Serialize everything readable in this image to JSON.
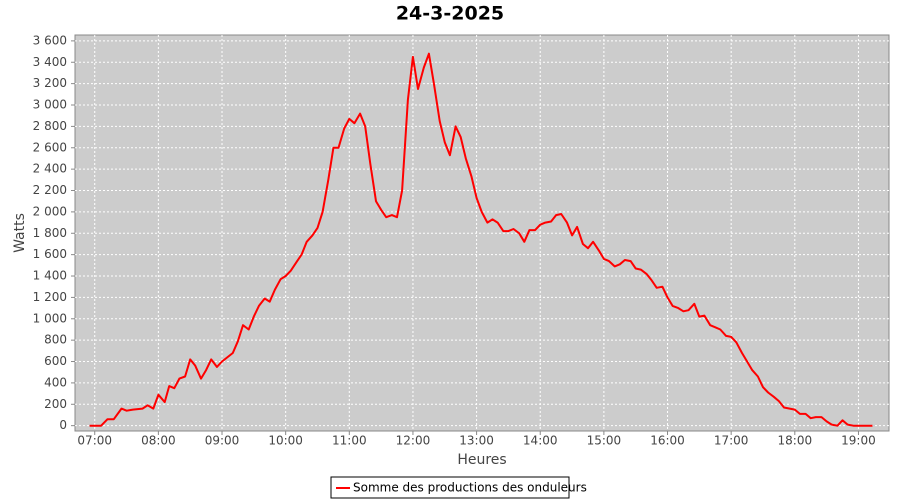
{
  "chart_data": {
    "type": "line",
    "title": "24-3-2025",
    "x_label": "Heures",
    "y_label": "Watts",
    "x": [
      6.92,
      7.0,
      7.1,
      7.2,
      7.3,
      7.42,
      7.5,
      7.6,
      7.75,
      7.83,
      7.92,
      8.0,
      8.1,
      8.17,
      8.25,
      8.33,
      8.42,
      8.5,
      8.58,
      8.67,
      8.75,
      8.83,
      8.92,
      9.0,
      9.17,
      9.25,
      9.33,
      9.42,
      9.5,
      9.58,
      9.67,
      9.75,
      9.83,
      9.92,
      10.0,
      10.08,
      10.17,
      10.25,
      10.33,
      10.42,
      10.5,
      10.58,
      10.67,
      10.75,
      10.83,
      10.92,
      11.0,
      11.08,
      11.17,
      11.25,
      11.33,
      11.42,
      11.5,
      11.58,
      11.67,
      11.75,
      11.83,
      11.92,
      12.0,
      12.08,
      12.17,
      12.25,
      12.33,
      12.42,
      12.5,
      12.58,
      12.67,
      12.75,
      12.83,
      12.92,
      13.0,
      13.08,
      13.17,
      13.25,
      13.33,
      13.42,
      13.5,
      13.58,
      13.67,
      13.75,
      13.83,
      13.92,
      14.0,
      14.08,
      14.17,
      14.25,
      14.33,
      14.42,
      14.5,
      14.58,
      14.67,
      14.75,
      14.83,
      14.92,
      15.0,
      15.08,
      15.17,
      15.25,
      15.33,
      15.42,
      15.5,
      15.58,
      15.67,
      15.75,
      15.83,
      15.92,
      16.0,
      16.08,
      16.17,
      16.25,
      16.33,
      16.42,
      16.5,
      16.58,
      16.67,
      16.75,
      16.83,
      16.92,
      17.0,
      17.08,
      17.17,
      17.25,
      17.33,
      17.42,
      17.5,
      17.58,
      17.67,
      17.75,
      17.83,
      17.92,
      18.0,
      18.08,
      18.17,
      18.25,
      18.33,
      18.42,
      18.5,
      18.58,
      18.67,
      18.75,
      18.83,
      18.92,
      19.0,
      19.17,
      19.22
    ],
    "series": [
      {
        "name": "Somme des productions des onduleurs",
        "color": "#ff0000",
        "values": [
          0,
          0,
          0,
          60,
          60,
          160,
          140,
          150,
          160,
          190,
          160,
          290,
          220,
          370,
          350,
          440,
          460,
          620,
          560,
          440,
          520,
          620,
          550,
          600,
          680,
          790,
          940,
          900,
          1020,
          1120,
          1190,
          1160,
          1270,
          1370,
          1400,
          1450,
          1530,
          1600,
          1720,
          1780,
          1850,
          2000,
          2300,
          2600,
          2600,
          2780,
          2870,
          2830,
          2920,
          2800,
          2450,
          2100,
          2020,
          1950,
          1970,
          1950,
          2200,
          3050,
          3450,
          3150,
          3350,
          3480,
          3200,
          2850,
          2650,
          2530,
          2800,
          2700,
          2500,
          2330,
          2130,
          2000,
          1900,
          1930,
          1900,
          1820,
          1820,
          1840,
          1800,
          1720,
          1830,
          1830,
          1880,
          1900,
          1910,
          1970,
          1980,
          1900,
          1780,
          1860,
          1700,
          1660,
          1720,
          1640,
          1560,
          1540,
          1490,
          1510,
          1550,
          1540,
          1470,
          1460,
          1420,
          1360,
          1290,
          1300,
          1200,
          1120,
          1100,
          1070,
          1080,
          1140,
          1020,
          1030,
          940,
          920,
          900,
          840,
          830,
          780,
          680,
          600,
          520,
          460,
          360,
          310,
          270,
          230,
          170,
          160,
          150,
          110,
          110,
          70,
          80,
          80,
          40,
          10,
          0,
          50,
          10,
          0,
          0,
          0,
          0
        ]
      }
    ],
    "xlim": [
      6.69,
      19.48
    ],
    "xticks": [
      {
        "value": 7,
        "label": "07:00"
      },
      {
        "value": 8,
        "label": "08:00"
      },
      {
        "value": 9,
        "label": "09:00"
      },
      {
        "value": 10,
        "label": "10:00"
      },
      {
        "value": 11,
        "label": "11:00"
      },
      {
        "value": 12,
        "label": "12:00"
      },
      {
        "value": 13,
        "label": "13:00"
      },
      {
        "value": 14,
        "label": "14:00"
      },
      {
        "value": 15,
        "label": "15:00"
      },
      {
        "value": 16,
        "label": "16:00"
      },
      {
        "value": 17,
        "label": "17:00"
      },
      {
        "value": 18,
        "label": "18:00"
      },
      {
        "value": 19,
        "label": "19:00"
      }
    ],
    "ylim": [
      -50,
      3655
    ],
    "yticks": [
      0,
      200,
      400,
      600,
      800,
      {
        "value": 1000,
        "label": "1 000"
      },
      {
        "value": 1200,
        "label": "1 200"
      },
      {
        "value": 1400,
        "label": "1 400"
      },
      {
        "value": 1600,
        "label": "1 600"
      },
      {
        "value": 1800,
        "label": "1 800"
      },
      {
        "value": 2000,
        "label": "2 000"
      },
      {
        "value": 2200,
        "label": "2 200"
      },
      {
        "value": 2400,
        "label": "2 400"
      },
      {
        "value": 2600,
        "label": "2 600"
      },
      {
        "value": 2800,
        "label": "2 800"
      },
      {
        "value": 3000,
        "label": "3 000"
      },
      {
        "value": 3200,
        "label": "3 200"
      },
      {
        "value": 3400,
        "label": "3 400"
      },
      {
        "value": 3600,
        "label": "3 600"
      }
    ],
    "grid": true
  }
}
